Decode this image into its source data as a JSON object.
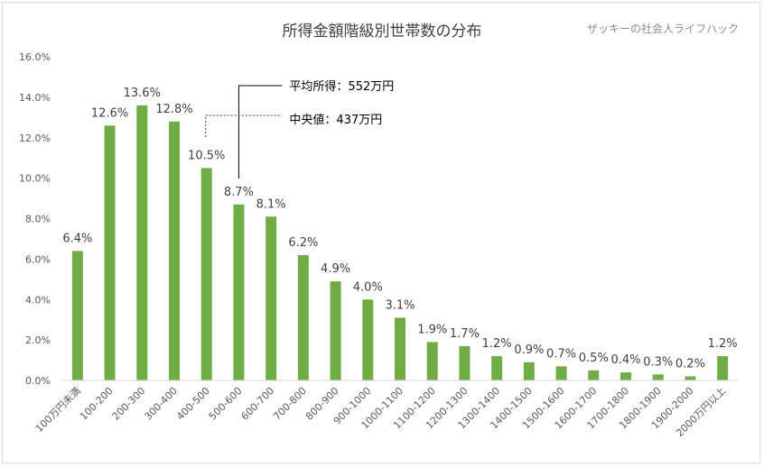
{
  "chart_data": {
    "type": "bar",
    "title": "所得金額階級別世帯数の分布",
    "watermark": "ザッキーの社会人ライフハック",
    "categories": [
      "100万円未満",
      "100-200",
      "200-300",
      "300-400",
      "400-500",
      "500-600",
      "600-700",
      "700-800",
      "800-900",
      "900-1000",
      "1000-1100",
      "1100-1200",
      "1200-1300",
      "1300-1400",
      "1400-1500",
      "1500-1600",
      "1600-1700",
      "1700-1800",
      "1800-1900",
      "1900-2000",
      "2000万円以上"
    ],
    "values": [
      6.4,
      12.6,
      13.6,
      12.8,
      10.5,
      8.7,
      8.1,
      6.2,
      4.9,
      4.0,
      3.1,
      1.9,
      1.7,
      1.2,
      0.9,
      0.7,
      0.5,
      0.4,
      0.3,
      0.2,
      1.2
    ],
    "data_labels": [
      "6.4%",
      "12.6%",
      "13.6%",
      "12.8%",
      "10.5%",
      "8.7%",
      "8.1%",
      "6.2%",
      "4.9%",
      "4.0%",
      "3.1%",
      "1.9%",
      "1.7%",
      "1.2%",
      "0.9%",
      "0.7%",
      "0.5%",
      "0.4%",
      "0.3%",
      "0.2%",
      "1.2%"
    ],
    "ylim": [
      0,
      16
    ],
    "y_ticks": [
      0,
      2,
      4,
      6,
      8,
      10,
      12,
      14,
      16
    ],
    "y_tick_labels": [
      "0.0%",
      "2.0%",
      "4.0%",
      "6.0%",
      "8.0%",
      "10.0%",
      "12.0%",
      "14.0%",
      "16.0%"
    ],
    "bar_color": "#70ad47",
    "grid": false,
    "legend": "none",
    "annotations": [
      {
        "text": "平均所得：552万円",
        "category_index": 5,
        "style": "solid"
      },
      {
        "text": "中央値：437万円",
        "category_index": 4,
        "style": "dotted"
      }
    ]
  }
}
